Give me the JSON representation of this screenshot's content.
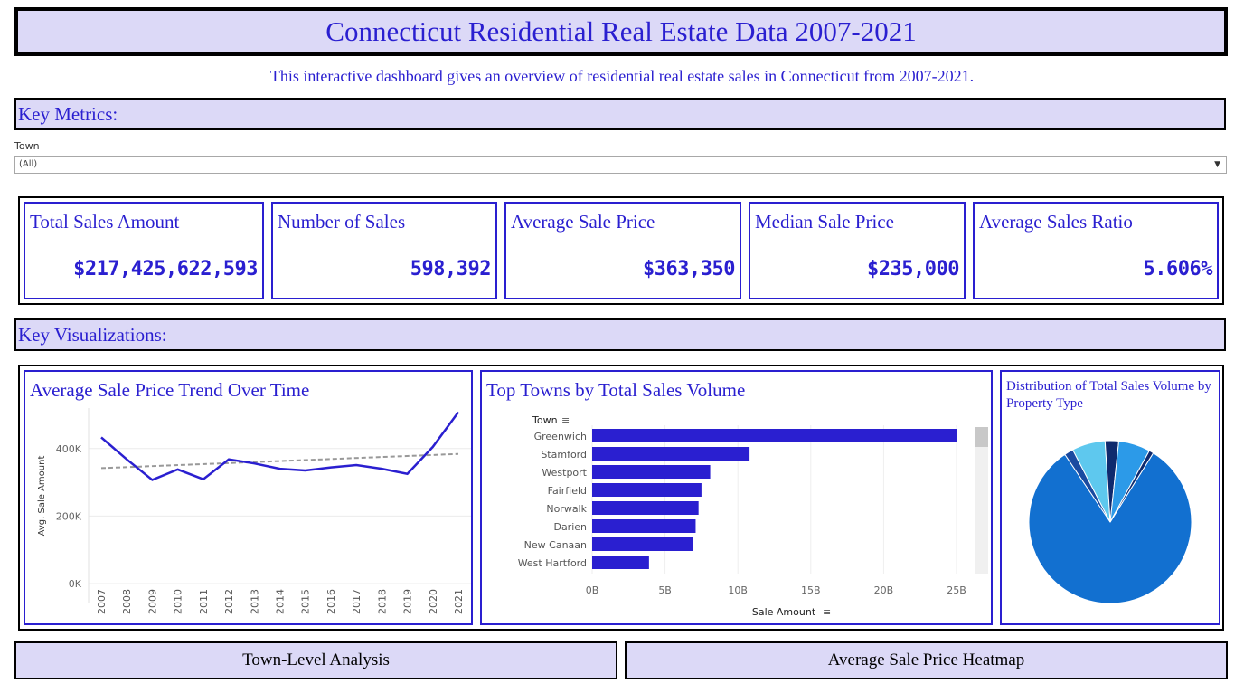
{
  "header": {
    "title": "Connecticut Residential Real Estate Data 2007-2021",
    "subtitle": "This interactive dashboard gives an overview of residential real estate sales in Connecticut from 2007-2021."
  },
  "sections": {
    "key_metrics": "Key Metrics:",
    "key_visualizations": "Key Visualizations:"
  },
  "filter": {
    "label": "Town",
    "value": "(All)"
  },
  "kpis": [
    {
      "label": "Total Sales Amount",
      "value": "$217,425,622,593"
    },
    {
      "label": "Number of Sales",
      "value": "598,392"
    },
    {
      "label": "Average Sale Price",
      "value": "$363,350"
    },
    {
      "label": "Median Sale Price",
      "value": "$235,000"
    },
    {
      "label": "Average Sales Ratio",
      "value": "5.606%"
    }
  ],
  "panels": {
    "trend_title": "Average Sale Price Trend Over Time",
    "towns_title": "Top Towns by Total Sales Volume",
    "pie_title": "Distribution of Total Sales Volume by Property Type"
  },
  "colors": {
    "accent": "#2a1fd0",
    "panel_bg": "#dcd9f7",
    "trend": "#dcd9f7",
    "line": "#2a1fd0"
  },
  "chart_data": [
    {
      "type": "line",
      "title": "Average Sale Price Trend Over Time",
      "ylabel": "Avg. Sale Amount",
      "xlabel": "",
      "x": [
        "2007",
        "2008",
        "2009",
        "2010",
        "2011",
        "2012",
        "2013",
        "2014",
        "2015",
        "2016",
        "2017",
        "2018",
        "2019",
        "2020",
        "2021"
      ],
      "y_tick_labels": [
        "0K",
        "200K",
        "400K"
      ],
      "ylim": [
        0,
        520000
      ],
      "series": [
        {
          "values": [
            433000,
            368000,
            307000,
            338000,
            309000,
            368000,
            356000,
            340000,
            335000,
            344000,
            351000,
            340000,
            325000,
            405000,
            508000
          ]
        }
      ],
      "trend_line": {
        "start": 342000,
        "end": 384000
      },
      "grid": true
    },
    {
      "type": "bar",
      "orientation": "horizontal",
      "title": "Top Towns by Total Sales Volume",
      "ylabel": "Town",
      "xlabel": "Sale Amount",
      "categories": [
        "Greenwich",
        "Stamford",
        "Westport",
        "Fairfield",
        "Norwalk",
        "Darien",
        "New Canaan",
        "West Hartford"
      ],
      "values": [
        25.0,
        10.8,
        8.1,
        7.5,
        7.3,
        7.1,
        6.9,
        3.9
      ],
      "value_unit": "B",
      "x_tick_labels": [
        "0B",
        "5B",
        "10B",
        "15B",
        "20B",
        "25B"
      ],
      "xlim": [
        0,
        25
      ]
    },
    {
      "type": "pie",
      "title": "Distribution of Total Sales Volume by Property Type",
      "slices": [
        {
          "value": 81.7,
          "color": "#1270d0"
        },
        {
          "value": 1.8,
          "color": "#1a4aa0"
        },
        {
          "value": 6.6,
          "color": "#5ec8ee"
        },
        {
          "value": 2.7,
          "color": "#0f2a6e"
        },
        {
          "value": 6.3,
          "color": "#2c9ae8"
        },
        {
          "value": 0.9,
          "color": "#0f2a6e"
        }
      ]
    }
  ],
  "navigation": {
    "town_button": "Town-Level Analysis",
    "heatmap_button": "Average Sale Price Heatmap"
  }
}
